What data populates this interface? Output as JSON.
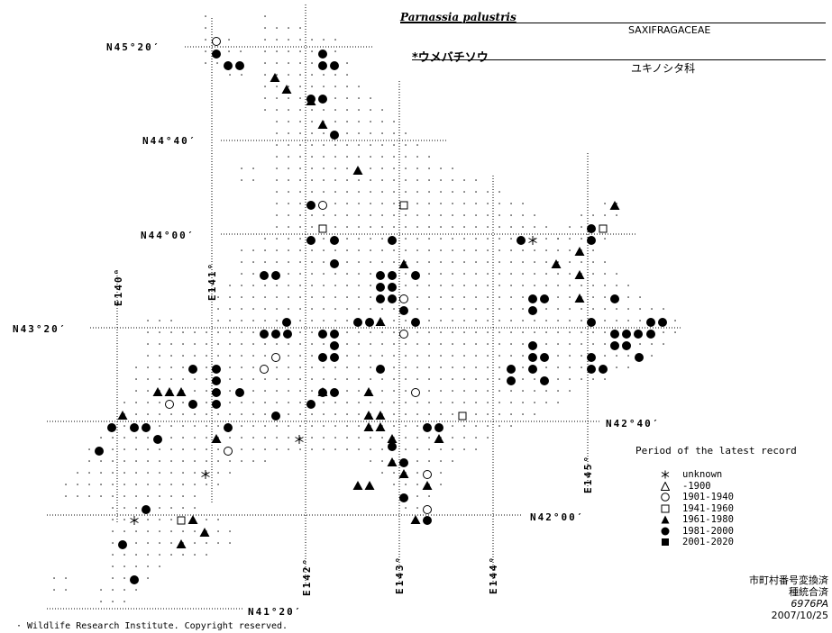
{
  "species": {
    "latin": "Parnassia palustris",
    "family_en": "SAXIFRAGACEAE",
    "japanese": "*ウメバチソウ",
    "family_jp": "ユキノシタ科"
  },
  "lat_labels": [
    "N45°20′",
    "N44°40′",
    "N44°00′",
    "N43°20′",
    "N42°40′",
    "N42°00′",
    "N41°20′"
  ],
  "lon_labels": [
    "E140°",
    "E141°",
    "E142°",
    "E143°",
    "E144°",
    "E145°"
  ],
  "legend": {
    "title": "Period of the latest record",
    "items": [
      {
        "symbol": "asterisk-icon",
        "label": "unknown"
      },
      {
        "symbol": "open-triangle-icon",
        "label": "-1900"
      },
      {
        "symbol": "open-circle-icon",
        "label": "1901-1940"
      },
      {
        "symbol": "open-square-icon",
        "label": "1941-1960"
      },
      {
        "symbol": "filled-triangle-icon",
        "label": "1961-1980"
      },
      {
        "symbol": "filled-circle-icon",
        "label": "1981-2000"
      },
      {
        "symbol": "filled-square-icon",
        "label": "2001-2020"
      }
    ]
  },
  "credits": {
    "line1": "市町村番号変換済",
    "line2": "種統合済",
    "line3": "6976PA",
    "date": "2007/10/25"
  },
  "copyright": "· Wildlife Research Institute. Copyright reserved."
}
